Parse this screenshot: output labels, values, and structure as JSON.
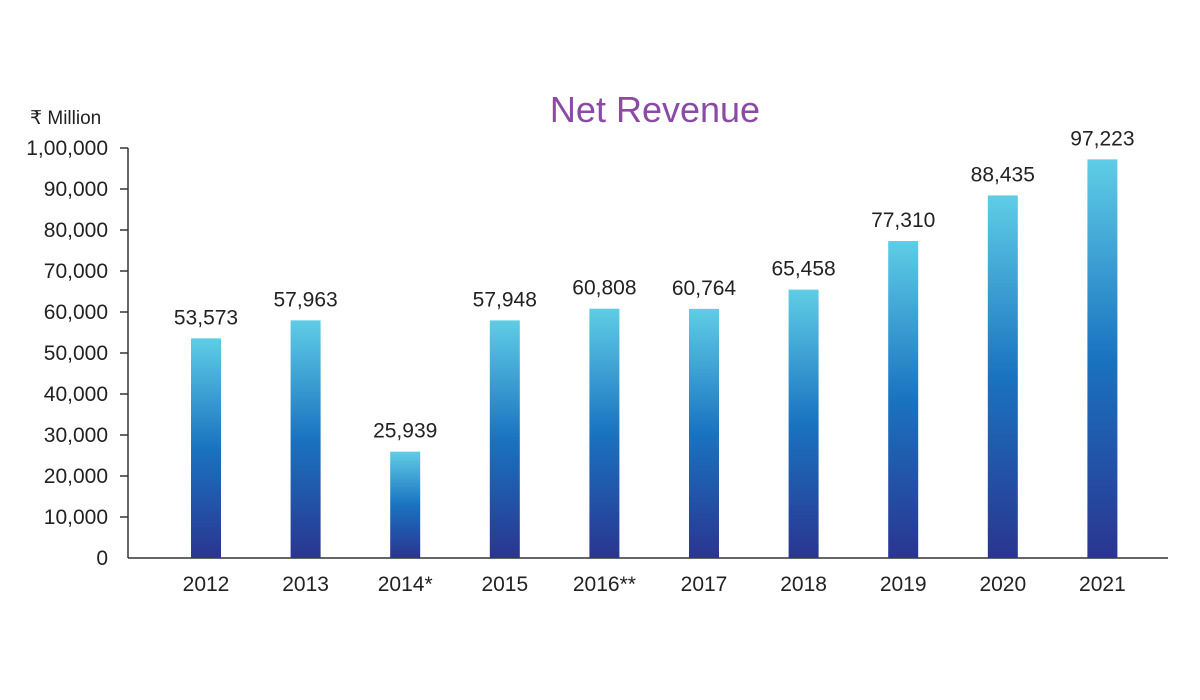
{
  "chart_data": {
    "type": "bar",
    "title": "Net Revenue",
    "unit_label": "₹ Million",
    "xlabel": "",
    "ylabel": "",
    "categories": [
      "2012",
      "2013",
      "2014*",
      "2015",
      "2016**",
      "2017",
      "2018",
      "2019",
      "2020",
      "2021"
    ],
    "values": [
      53573,
      57963,
      25939,
      57948,
      60808,
      60764,
      65458,
      77310,
      88435,
      97223
    ],
    "value_labels": [
      "53,573",
      "57,963",
      "25,939",
      "57,948",
      "60,808",
      "60,764",
      "65,458",
      "77,310",
      "88,435",
      "97,223"
    ],
    "ylim": [
      0,
      100000
    ],
    "yticks": [
      0,
      10000,
      20000,
      30000,
      40000,
      50000,
      60000,
      70000,
      80000,
      90000,
      100000
    ],
    "ytick_labels": [
      "0",
      "10,000",
      "20,000",
      "30,000",
      "40,000",
      "50,000",
      "60,000",
      "70,000",
      "80,000",
      "90,000",
      "1,00,000"
    ],
    "grid": false,
    "colors": {
      "bar_top": "#5fcde6",
      "bar_mid": "#1a73c0",
      "bar_bottom": "#2a3590",
      "title": "#8a4aa6",
      "axis": "#333333",
      "text": "#222222"
    }
  }
}
